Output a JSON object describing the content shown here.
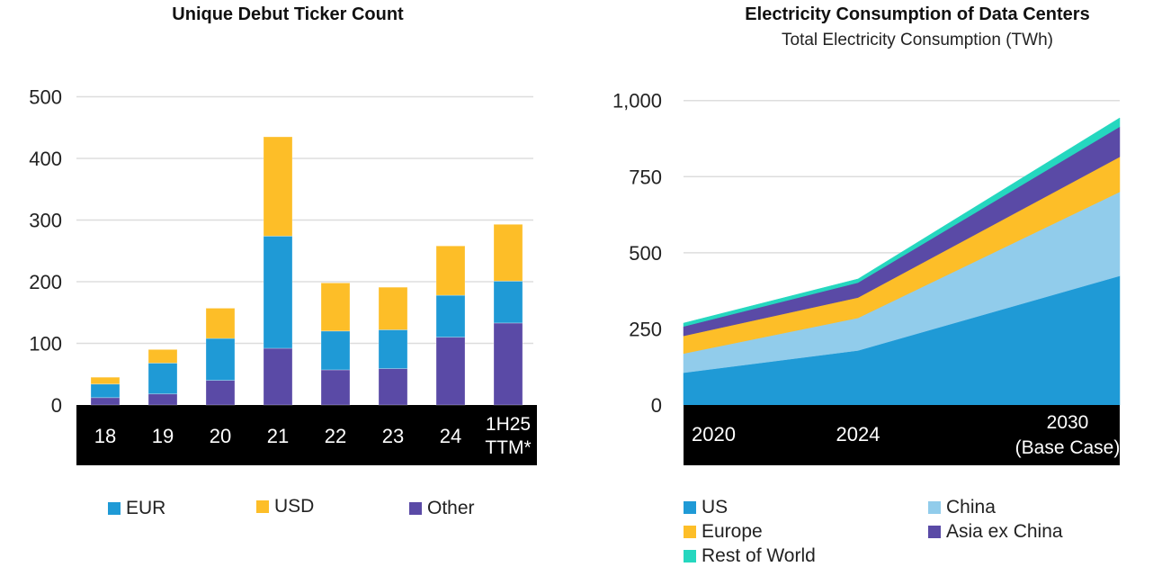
{
  "colors": {
    "blue": "#1f9ad6",
    "yellow": "#fdbe28",
    "purple": "#5a4aa6",
    "light_blue": "#91cceb",
    "teal": "#25d7bf",
    "grid": "#dddddd",
    "axis_band": "#000000",
    "axis_band_text": "#ffffff"
  },
  "chart_data": [
    {
      "type": "bar",
      "stacked": true,
      "title": "Unique Debut Ticker Count",
      "xlabel": "",
      "ylabel": "",
      "categories": [
        "18",
        "19",
        "20",
        "21",
        "22",
        "23",
        "24",
        "1H25 TTM*"
      ],
      "category_lines": [
        [
          "18"
        ],
        [
          "19"
        ],
        [
          "20"
        ],
        [
          "21"
        ],
        [
          "22"
        ],
        [
          "23"
        ],
        [
          "24"
        ],
        [
          "1H25",
          "TTM*"
        ]
      ],
      "series": [
        {
          "name": "Other",
          "color": "#5a4aa6",
          "values": [
            12,
            18,
            40,
            92,
            57,
            59,
            110,
            133
          ]
        },
        {
          "name": "EUR",
          "color": "#1f9ad6",
          "values": [
            22,
            50,
            68,
            182,
            63,
            63,
            68,
            68
          ]
        },
        {
          "name": "USD",
          "color": "#fdbe28",
          "values": [
            11,
            22,
            49,
            161,
            78,
            69,
            80,
            92
          ]
        }
      ],
      "ylim": [
        0,
        500
      ],
      "yticks": [
        0,
        100,
        200,
        300,
        400,
        500
      ],
      "ytick_labels": [
        "0",
        "100",
        "200",
        "300",
        "400",
        "500"
      ],
      "grid": true,
      "legend": {
        "placement": "bottom",
        "items": [
          {
            "label": "EUR",
            "color": "#1f9ad6"
          },
          {
            "label": "USD",
            "color": "#fdbe28"
          },
          {
            "label": "Other",
            "color": "#5a4aa6"
          }
        ]
      }
    },
    {
      "type": "area",
      "stacked": true,
      "title": "Electricity Consumption of Data Centers",
      "subtitle": "Total Electricity Consumption (TWh)",
      "xlabel": "",
      "ylabel": "Total Electricity Consumption (TWh)",
      "x": [
        "2020",
        "2024",
        "2030 (Base Case)"
      ],
      "x_positions": [
        2020,
        2024,
        2030
      ],
      "x_label_lines": [
        [
          "2020"
        ],
        [
          "2024"
        ],
        [
          "2030",
          "(Base Case)"
        ]
      ],
      "series": [
        {
          "name": "US",
          "color": "#1f9ad6",
          "values": [
            106,
            179,
            424
          ]
        },
        {
          "name": "China",
          "color": "#91cceb",
          "values": [
            63,
            107,
            276
          ]
        },
        {
          "name": "Europe",
          "color": "#fdbe28",
          "values": [
            58,
            67,
            115
          ]
        },
        {
          "name": "Asia ex China",
          "color": "#5a4aa6",
          "values": [
            31,
            49,
            99
          ]
        },
        {
          "name": "Rest of World",
          "color": "#25d7bf",
          "values": [
            11,
            12,
            29
          ]
        }
      ],
      "ylim": [
        0,
        1000
      ],
      "yticks": [
        0,
        250,
        500,
        750,
        1000
      ],
      "ytick_labels": [
        "0",
        "250",
        "500",
        "750",
        "1,000"
      ],
      "grid": true,
      "legend": {
        "placement": "bottom",
        "items": [
          {
            "label": "US",
            "color": "#1f9ad6"
          },
          {
            "label": "China",
            "color": "#91cceb"
          },
          {
            "label": "Europe",
            "color": "#fdbe28"
          },
          {
            "label": "Asia ex China",
            "color": "#5a4aa6"
          },
          {
            "label": "Rest of World",
            "color": "#25d7bf"
          }
        ]
      }
    }
  ]
}
